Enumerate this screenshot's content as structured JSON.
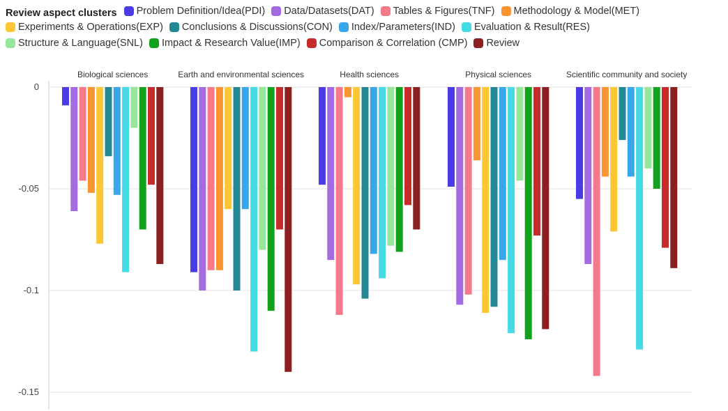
{
  "chart_data": {
    "type": "bar",
    "legend_title": "Review aspect clusters",
    "legend_position": "top",
    "grid": true,
    "ylim": [
      -0.15,
      0
    ],
    "y_ticks": [
      0,
      -0.05,
      -0.1,
      -0.15
    ],
    "y_tick_labels": [
      "0",
      "-0.05",
      "-0.1",
      "-0.15"
    ],
    "categories": [
      "Biological sciences",
      "Earth and environmental sciences",
      "Health sciences",
      "Physical sciences",
      "Scientific community and society"
    ],
    "series": [
      {
        "name": "Problem Definition/Idea(PDI)",
        "color": "#4b3be6",
        "values": [
          -0.009,
          -0.091,
          -0.048,
          -0.049,
          -0.055
        ]
      },
      {
        "name": "Data/Datasets(DAT)",
        "color": "#a46be0",
        "values": [
          -0.061,
          -0.1,
          -0.085,
          -0.107,
          -0.087
        ]
      },
      {
        "name": "Tables & Figures(TNF)",
        "color": "#f5788b",
        "values": [
          -0.046,
          -0.09,
          -0.112,
          -0.102,
          -0.142
        ]
      },
      {
        "name": "Methodology & Model(MET)",
        "color": "#fb9531",
        "values": [
          -0.052,
          -0.09,
          -0.005,
          -0.036,
          -0.044
        ]
      },
      {
        "name": "Experiments & Operations(EXP)",
        "color": "#fcc634",
        "values": [
          -0.077,
          -0.06,
          -0.097,
          -0.111,
          -0.071
        ]
      },
      {
        "name": "Conclusions & Discussions(CON)",
        "color": "#238796",
        "values": [
          -0.034,
          -0.1,
          -0.104,
          -0.108,
          -0.026
        ]
      },
      {
        "name": "Index/Parameters(IND)",
        "color": "#3aa6ea",
        "values": [
          -0.053,
          -0.06,
          -0.082,
          -0.085,
          -0.044
        ]
      },
      {
        "name": "Evaluation & Result(RES)",
        "color": "#46dbe4",
        "values": [
          -0.091,
          -0.13,
          -0.094,
          -0.121,
          -0.129
        ]
      },
      {
        "name": "Structure & Language(SNL)",
        "color": "#98e69c",
        "values": [
          -0.02,
          -0.08,
          -0.078,
          -0.046,
          -0.04
        ]
      },
      {
        "name": "Impact & Research Value(IMP)",
        "color": "#13a21c",
        "values": [
          -0.07,
          -0.11,
          -0.081,
          -0.124,
          -0.05
        ]
      },
      {
        "name": "Comparison & Correlation (CMP)",
        "color": "#c72c2c",
        "values": [
          -0.048,
          -0.07,
          -0.058,
          -0.073,
          -0.079
        ]
      },
      {
        "name": "Review",
        "color": "#8c1f1f",
        "values": [
          -0.087,
          -0.14,
          -0.07,
          -0.119,
          -0.089
        ]
      }
    ]
  }
}
